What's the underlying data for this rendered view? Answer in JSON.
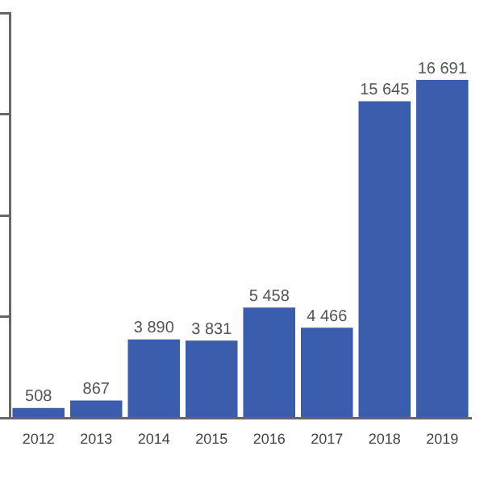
{
  "chart_data": {
    "type": "bar",
    "categories": [
      "2012",
      "2013",
      "2014",
      "2015",
      "2016",
      "2017",
      "2018",
      "2019"
    ],
    "values": [
      508,
      867,
      3890,
      3831,
      5458,
      4466,
      15645,
      16691
    ],
    "value_labels": [
      "508",
      "867",
      "3 890",
      "3 831",
      "5 458",
      "4 466",
      "15 645",
      "16 691"
    ],
    "color": "#3a5dae",
    "ylim": [
      0,
      20000
    ],
    "yticks": [
      {
        "value": 0,
        "label": null
      },
      {
        "value": 5000,
        "label": null
      },
      {
        "value": 10000,
        "label": null
      },
      {
        "value": 15000,
        "label": null
      },
      {
        "value": 20000,
        "label": null
      }
    ],
    "grid": false,
    "legend": false
  }
}
